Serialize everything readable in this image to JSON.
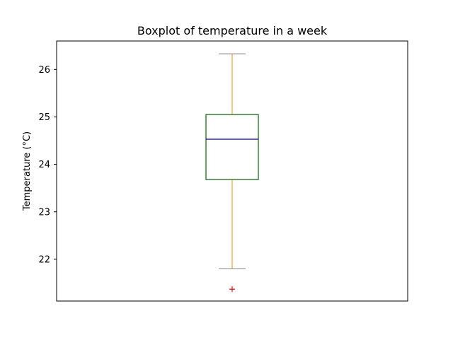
{
  "chart_data": {
    "type": "box",
    "title": "Boxplot of temperature in a week",
    "xlabel": "",
    "ylabel": "Temperature (°C)",
    "ylim": [
      21.12,
      26.6
    ],
    "yticks": [
      22,
      23,
      24,
      25,
      26
    ],
    "grid": false,
    "boxes": [
      {
        "whisker_low": 21.8,
        "q1": 23.68,
        "median": 24.53,
        "q3": 25.05,
        "whisker_high": 26.33,
        "outliers": [
          21.37
        ]
      }
    ]
  },
  "colors": {
    "box": "#006400",
    "median": "#00008b",
    "whisker": "#ff8c00",
    "cap": "#808080",
    "outlier": "#ff0000",
    "axes": "#000000"
  }
}
